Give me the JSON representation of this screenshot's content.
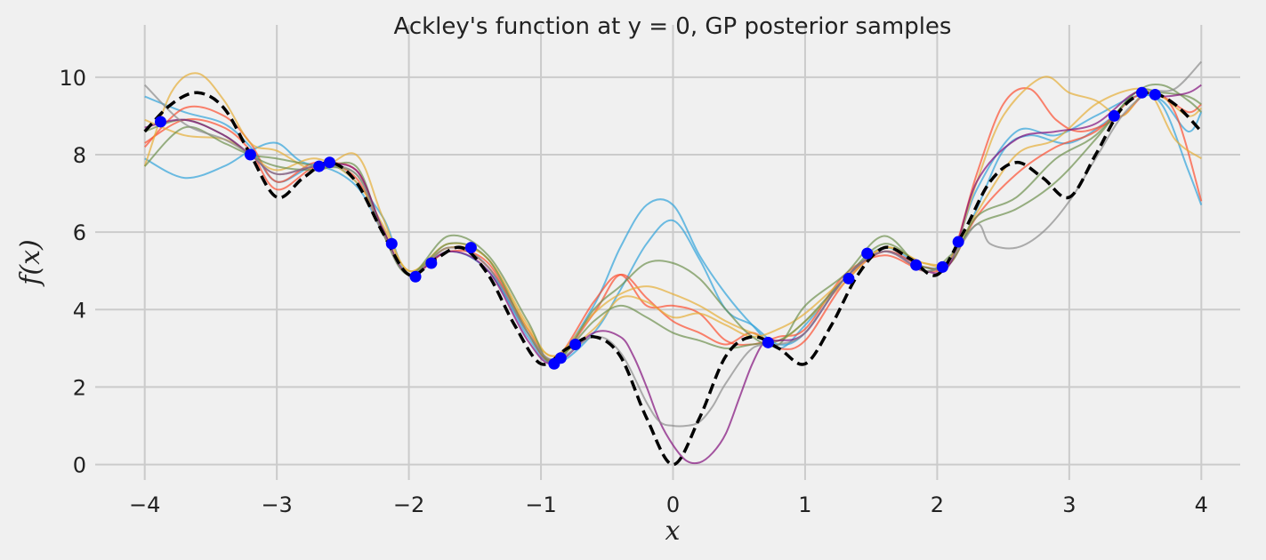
{
  "chart_data": {
    "type": "line",
    "title": "Ackley's function at y = 0, GP posterior samples",
    "xlabel": "x",
    "ylabel": "f(x)",
    "xlim": [
      -4.2,
      4.2
    ],
    "ylim": [
      -0.4,
      10.8
    ],
    "xticks": [
      -4,
      -3,
      -2,
      -1,
      0,
      1,
      2,
      3,
      4
    ],
    "xtick_labels": [
      "−4",
      "−3",
      "−2",
      "−1",
      "0",
      "1",
      "2",
      "3",
      "4"
    ],
    "yticks": [
      0,
      2,
      4,
      6,
      8,
      10
    ],
    "ytick_labels": [
      "0",
      "2",
      "4",
      "6",
      "8",
      "10"
    ],
    "grid": true,
    "legend": "none",
    "true_function": {
      "style": "dashed",
      "color": "#000000",
      "x": [
        -4.0,
        -3.8,
        -3.6,
        -3.4,
        -3.2,
        -3.0,
        -2.8,
        -2.6,
        -2.4,
        -2.2,
        -2.0,
        -1.8,
        -1.6,
        -1.4,
        -1.2,
        -1.0,
        -0.8,
        -0.6,
        -0.4,
        -0.2,
        0.0,
        0.2,
        0.4,
        0.6,
        0.8,
        1.0,
        1.2,
        1.4,
        1.6,
        1.8,
        2.0,
        2.2,
        2.4,
        2.6,
        2.8,
        3.0,
        3.2,
        3.4,
        3.6,
        3.8,
        4.0
      ],
      "y": [
        8.6,
        9.3,
        9.6,
        9.2,
        8.0,
        6.9,
        7.4,
        7.8,
        7.3,
        6.0,
        4.9,
        5.3,
        5.6,
        4.9,
        3.6,
        2.6,
        3.0,
        3.3,
        2.8,
        1.2,
        0.0,
        1.2,
        2.8,
        3.3,
        3.0,
        2.6,
        3.6,
        4.9,
        5.6,
        5.3,
        4.9,
        6.0,
        7.3,
        7.8,
        7.4,
        6.9,
        8.0,
        9.2,
        9.6,
        9.3,
        8.6
      ]
    },
    "observations": {
      "color": "#0000ff",
      "x": [
        -3.88,
        -3.2,
        -2.68,
        -2.6,
        -2.13,
        -1.95,
        -1.83,
        -1.53,
        -0.9,
        -0.85,
        -0.74,
        0.72,
        1.33,
        1.47,
        1.84,
        2.04,
        2.16,
        3.34,
        3.55,
        3.65
      ],
      "y": [
        8.85,
        8.0,
        7.7,
        7.8,
        5.7,
        4.85,
        5.2,
        5.6,
        2.6,
        2.75,
        3.1,
        3.15,
        4.8,
        5.45,
        5.15,
        5.1,
        5.75,
        9.0,
        9.6,
        9.55
      ]
    },
    "series": [
      {
        "color": "#30a2da",
        "x": [
          -4.0,
          -3.7,
          -3.4,
          -3.2,
          -3.0,
          -2.8,
          -2.5,
          -2.2,
          -2.0,
          -1.7,
          -1.4,
          -1.1,
          -0.9,
          -0.6,
          -0.4,
          -0.2,
          0.0,
          0.2,
          0.4,
          0.6,
          0.8,
          1.0,
          1.3,
          1.6,
          1.9,
          2.1,
          2.3,
          2.5,
          2.7,
          3.0,
          3.3,
          3.5,
          3.7,
          3.9,
          4.0
        ],
        "y": [
          7.9,
          7.4,
          7.7,
          8.1,
          8.3,
          7.8,
          7.6,
          6.4,
          4.9,
          5.6,
          5.1,
          3.3,
          2.7,
          4.1,
          5.6,
          6.7,
          6.7,
          5.4,
          4.4,
          3.6,
          3.0,
          3.6,
          4.8,
          5.6,
          5.1,
          5.2,
          6.6,
          8.1,
          8.5,
          8.3,
          8.9,
          9.5,
          9.3,
          7.6,
          6.7
        ]
      },
      {
        "color": "#30a2da",
        "x": [
          -4.0,
          -3.7,
          -3.4,
          -3.2,
          -3.0,
          -2.7,
          -2.4,
          -2.2,
          -2.0,
          -1.7,
          -1.4,
          -1.1,
          -0.9,
          -0.6,
          -0.4,
          -0.2,
          0.0,
          0.2,
          0.4,
          0.6,
          0.8,
          1.0,
          1.3,
          1.6,
          1.9,
          2.1,
          2.3,
          2.6,
          2.9,
          3.2,
          3.5,
          3.7,
          3.9,
          4.0
        ],
        "y": [
          9.5,
          9.1,
          8.8,
          8.2,
          7.3,
          7.7,
          7.2,
          6.0,
          4.9,
          5.5,
          5.0,
          3.4,
          2.6,
          3.4,
          4.5,
          5.7,
          6.3,
          5.3,
          4.0,
          3.6,
          3.1,
          3.4,
          4.8,
          5.5,
          5.1,
          5.3,
          7.1,
          8.6,
          8.5,
          9.0,
          9.5,
          9.4,
          8.6,
          9.1
        ]
      },
      {
        "color": "#fc4f30",
        "x": [
          -4.0,
          -3.7,
          -3.4,
          -3.2,
          -3.0,
          -2.7,
          -2.4,
          -2.2,
          -2.0,
          -1.7,
          -1.4,
          -1.1,
          -0.9,
          -0.6,
          -0.4,
          -0.2,
          0.0,
          0.2,
          0.4,
          0.6,
          0.8,
          1.0,
          1.3,
          1.6,
          1.9,
          2.1,
          2.3,
          2.5,
          2.7,
          2.9,
          3.1,
          3.4,
          3.6,
          3.8,
          4.0
        ],
        "y": [
          8.3,
          8.9,
          8.7,
          8.1,
          7.1,
          7.7,
          7.6,
          6.1,
          4.9,
          5.6,
          5.1,
          3.5,
          2.7,
          3.9,
          4.9,
          4.3,
          3.7,
          3.4,
          3.1,
          3.4,
          3.0,
          3.2,
          4.7,
          5.5,
          5.1,
          5.3,
          7.5,
          9.3,
          9.7,
          8.9,
          8.6,
          9.0,
          9.6,
          9.1,
          6.8
        ]
      },
      {
        "color": "#fc4f30",
        "x": [
          -4.0,
          -3.7,
          -3.4,
          -3.2,
          -3.0,
          -2.7,
          -2.4,
          -2.2,
          -2.0,
          -1.7,
          -1.4,
          -1.1,
          -0.9,
          -0.6,
          -0.4,
          -0.2,
          0.0,
          0.2,
          0.4,
          0.6,
          0.8,
          1.0,
          1.3,
          1.6,
          1.9,
          2.1,
          2.3,
          2.6,
          2.9,
          3.2,
          3.5,
          3.7,
          3.9,
          4.0
        ],
        "y": [
          8.2,
          9.2,
          9.0,
          8.3,
          7.3,
          7.8,
          7.4,
          6.0,
          4.9,
          5.5,
          5.2,
          3.4,
          2.7,
          4.2,
          4.9,
          4.1,
          4.1,
          3.9,
          3.2,
          3.1,
          3.3,
          3.5,
          4.9,
          5.4,
          5.0,
          5.2,
          6.4,
          7.5,
          8.2,
          8.6,
          9.5,
          9.5,
          9.1,
          9.3
        ]
      },
      {
        "color": "#e5ae38",
        "x": [
          -4.0,
          -3.8,
          -3.6,
          -3.4,
          -3.2,
          -3.0,
          -2.7,
          -2.4,
          -2.2,
          -2.0,
          -1.7,
          -1.4,
          -1.1,
          -0.9,
          -0.6,
          -0.4,
          -0.2,
          0.0,
          0.2,
          0.4,
          0.6,
          0.8,
          1.0,
          1.3,
          1.6,
          1.9,
          2.1,
          2.3,
          2.5,
          2.8,
          3.0,
          3.2,
          3.4,
          3.6,
          3.8,
          4.0
        ],
        "y": [
          7.7,
          9.6,
          10.1,
          9.4,
          8.3,
          8.1,
          7.6,
          8.0,
          6.4,
          5.0,
          5.7,
          5.3,
          3.6,
          2.8,
          3.9,
          4.4,
          4.6,
          4.4,
          4.1,
          3.7,
          3.4,
          3.2,
          3.7,
          4.7,
          5.6,
          5.2,
          5.3,
          7.3,
          9.0,
          10.0,
          9.6,
          9.4,
          9.0,
          9.6,
          8.4,
          7.9
        ]
      },
      {
        "color": "#e5ae38",
        "x": [
          -4.0,
          -3.7,
          -3.4,
          -3.2,
          -3.0,
          -2.7,
          -2.4,
          -2.2,
          -2.0,
          -1.7,
          -1.4,
          -1.1,
          -0.9,
          -0.6,
          -0.4,
          -0.2,
          0.0,
          0.2,
          0.4,
          0.6,
          0.8,
          1.0,
          1.3,
          1.6,
          1.9,
          2.1,
          2.3,
          2.6,
          2.9,
          3.2,
          3.5,
          3.7,
          3.9,
          4.0
        ],
        "y": [
          8.9,
          8.5,
          8.4,
          8.0,
          7.6,
          7.9,
          7.3,
          6.2,
          5.0,
          5.6,
          5.3,
          3.5,
          2.8,
          3.5,
          4.3,
          4.2,
          3.8,
          3.9,
          3.6,
          3.3,
          3.5,
          3.9,
          4.8,
          5.6,
          5.2,
          5.3,
          6.5,
          8.0,
          8.4,
          9.3,
          9.7,
          9.5,
          9.0,
          9.2
        ]
      },
      {
        "color": "#6d904f",
        "x": [
          -4.0,
          -3.7,
          -3.4,
          -3.2,
          -3.0,
          -2.7,
          -2.4,
          -2.2,
          -2.0,
          -1.7,
          -1.4,
          -1.1,
          -0.9,
          -0.6,
          -0.4,
          -0.2,
          0.0,
          0.2,
          0.4,
          0.6,
          0.8,
          1.0,
          1.3,
          1.6,
          1.9,
          2.1,
          2.3,
          2.6,
          2.9,
          3.2,
          3.5,
          3.7,
          3.9,
          4.0
        ],
        "y": [
          7.7,
          8.7,
          8.3,
          8.0,
          7.9,
          7.7,
          7.5,
          6.1,
          4.9,
          5.9,
          5.4,
          3.7,
          2.6,
          4.0,
          4.6,
          5.2,
          5.2,
          4.8,
          4.0,
          3.3,
          3.1,
          4.1,
          4.9,
          5.9,
          5.0,
          5.4,
          6.2,
          6.6,
          7.3,
          8.4,
          9.6,
          9.6,
          9.5,
          9.3
        ]
      },
      {
        "color": "#6d904f",
        "x": [
          -4.0,
          -3.7,
          -3.4,
          -3.2,
          -3.0,
          -2.7,
          -2.4,
          -2.2,
          -2.0,
          -1.7,
          -1.4,
          -1.1,
          -0.9,
          -0.6,
          -0.4,
          -0.2,
          0.0,
          0.2,
          0.4,
          0.6,
          0.8,
          1.0,
          1.3,
          1.6,
          1.9,
          2.1,
          2.3,
          2.6,
          2.9,
          3.2,
          3.5,
          3.7,
          3.9,
          4.0
        ],
        "y": [
          8.6,
          8.9,
          8.5,
          8.0,
          7.7,
          7.6,
          7.7,
          6.0,
          4.9,
          5.7,
          5.3,
          3.4,
          2.7,
          3.7,
          4.1,
          3.8,
          3.4,
          3.2,
          3.0,
          3.1,
          3.2,
          3.7,
          4.8,
          5.7,
          5.1,
          5.2,
          6.4,
          6.9,
          7.9,
          8.5,
          9.6,
          9.8,
          9.4,
          9.1
        ]
      },
      {
        "color": "#810f7c",
        "x": [
          -4.0,
          -3.7,
          -3.4,
          -3.2,
          -3.0,
          -2.7,
          -2.4,
          -2.2,
          -2.0,
          -1.7,
          -1.4,
          -1.1,
          -0.9,
          -0.6,
          -0.4,
          -0.3,
          -0.2,
          -0.1,
          0.0,
          0.1,
          0.2,
          0.3,
          0.4,
          0.5,
          0.6,
          0.7,
          0.8,
          1.0,
          1.3,
          1.6,
          1.9,
          2.1,
          2.3,
          2.6,
          2.9,
          3.2,
          3.5,
          3.7,
          3.9,
          4.0
        ],
        "y": [
          8.7,
          8.9,
          8.5,
          8.0,
          7.5,
          7.7,
          7.6,
          6.1,
          4.9,
          5.5,
          5.0,
          3.2,
          2.6,
          3.4,
          3.3,
          2.8,
          2.0,
          1.1,
          0.5,
          0.1,
          0.05,
          0.3,
          0.8,
          1.7,
          2.6,
          3.2,
          3.2,
          3.4,
          4.8,
          5.5,
          5.0,
          5.2,
          7.3,
          8.4,
          8.6,
          8.8,
          9.6,
          9.5,
          9.6,
          9.8
        ]
      },
      {
        "color": "#8b8b8b",
        "x": [
          -4.0,
          -3.7,
          -3.4,
          -3.2,
          -3.0,
          -2.7,
          -2.4,
          -2.2,
          -2.0,
          -1.7,
          -1.4,
          -1.1,
          -0.9,
          -0.6,
          -0.4,
          -0.2,
          -0.1,
          0.0,
          0.1,
          0.2,
          0.3,
          0.4,
          0.6,
          0.8,
          1.0,
          1.3,
          1.6,
          1.9,
          2.1,
          2.3,
          2.4,
          2.6,
          2.8,
          3.0,
          3.2,
          3.4,
          3.6,
          3.8,
          4.0
        ],
        "y": [
          9.8,
          8.8,
          8.4,
          8.0,
          7.5,
          7.7,
          7.5,
          6.0,
          4.9,
          5.6,
          5.1,
          3.4,
          2.7,
          3.3,
          2.9,
          1.6,
          1.1,
          1.0,
          1.0,
          1.1,
          1.5,
          2.1,
          3.0,
          3.1,
          3.4,
          4.8,
          5.5,
          5.0,
          5.3,
          6.2,
          5.7,
          5.6,
          6.0,
          6.8,
          7.9,
          9.0,
          9.6,
          9.7,
          10.4
        ]
      }
    ]
  }
}
